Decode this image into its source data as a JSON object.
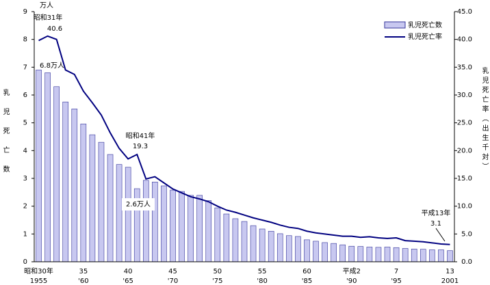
{
  "chart_data": {
    "type": "bar",
    "y_unit": "万人",
    "ylabel": "乳児死亡数",
    "y2label": "乳児死亡率（出生千対）",
    "categories": [
      "昭和30年",
      null,
      null,
      null,
      null,
      "35",
      null,
      null,
      null,
      null,
      "40",
      null,
      null,
      null,
      null,
      "45",
      null,
      null,
      null,
      null,
      "50",
      null,
      null,
      null,
      null,
      "55",
      null,
      null,
      null,
      null,
      "60",
      null,
      null,
      null,
      null,
      "平成2",
      null,
      null,
      null,
      null,
      "7",
      null,
      null,
      null,
      null,
      null,
      "13"
    ],
    "categories_ad": [
      "1955",
      null,
      null,
      null,
      null,
      "'60",
      null,
      null,
      null,
      null,
      "'65",
      null,
      null,
      null,
      null,
      "'70",
      null,
      null,
      null,
      null,
      "'75",
      null,
      null,
      null,
      null,
      "'80",
      null,
      null,
      null,
      null,
      "'85",
      null,
      null,
      null,
      null,
      "'90",
      null,
      null,
      null,
      null,
      "'95",
      null,
      null,
      null,
      null,
      null,
      "2001"
    ],
    "series": [
      {
        "name": "乳児死亡数",
        "type": "bar",
        "color": "#c8c8f0",
        "edge": "#333399",
        "values": [
          6.9,
          6.8,
          6.3,
          5.75,
          5.5,
          4.96,
          4.57,
          4.3,
          3.86,
          3.5,
          3.4,
          2.63,
          2.93,
          2.87,
          2.73,
          2.58,
          2.53,
          2.39,
          2.39,
          2.2,
          1.94,
          1.72,
          1.55,
          1.45,
          1.3,
          1.18,
          1.1,
          1.01,
          0.94,
          0.91,
          0.79,
          0.74,
          0.69,
          0.66,
          0.61,
          0.56,
          0.55,
          0.53,
          0.52,
          0.53,
          0.51,
          0.48,
          0.46,
          0.45,
          0.43,
          0.43,
          0.4
        ]
      },
      {
        "name": "乳児死亡率",
        "type": "line",
        "axis": "y2",
        "color": "#000080",
        "values": [
          39.8,
          40.6,
          40.0,
          34.5,
          33.7,
          30.7,
          28.6,
          26.4,
          23.2,
          20.4,
          18.5,
          19.3,
          14.9,
          15.3,
          14.2,
          13.1,
          12.4,
          11.7,
          11.3,
          10.8,
          10.0,
          9.3,
          8.9,
          8.4,
          7.9,
          7.5,
          7.1,
          6.6,
          6.2,
          6.0,
          5.5,
          5.2,
          5.0,
          4.8,
          4.6,
          4.6,
          4.4,
          4.5,
          4.3,
          4.2,
          4.3,
          3.8,
          3.7,
          3.6,
          3.4,
          3.2,
          3.1
        ]
      }
    ],
    "ylim": [
      0,
      9
    ],
    "yticks": [
      0,
      1,
      2,
      3,
      4,
      5,
      6,
      7,
      8,
      9
    ],
    "y2lim": [
      0,
      45
    ],
    "y2ticks": [
      {
        "value": 0,
        "label": "0.0"
      },
      {
        "value": 5,
        "label": "5.0"
      },
      {
        "value": 10,
        "label": "10.0"
      },
      {
        "value": 15,
        "label": "15.0"
      },
      {
        "value": 20,
        "label": "20.0"
      },
      {
        "value": 25,
        "label": "25.0"
      },
      {
        "value": 30,
        "label": "30.0"
      },
      {
        "value": 35,
        "label": "35.0"
      },
      {
        "value": 40,
        "label": "40.0"
      },
      {
        "value": 45,
        "label": "45.0"
      }
    ],
    "legend": "upper right",
    "annotations": [
      {
        "title": "昭和31年",
        "text": "40.6"
      },
      {
        "text": "6.8万人"
      },
      {
        "title": "昭和41年",
        "text": "19.3"
      },
      {
        "text": "2.6万人"
      },
      {
        "title": "平成13年",
        "text": "3.1"
      }
    ]
  }
}
